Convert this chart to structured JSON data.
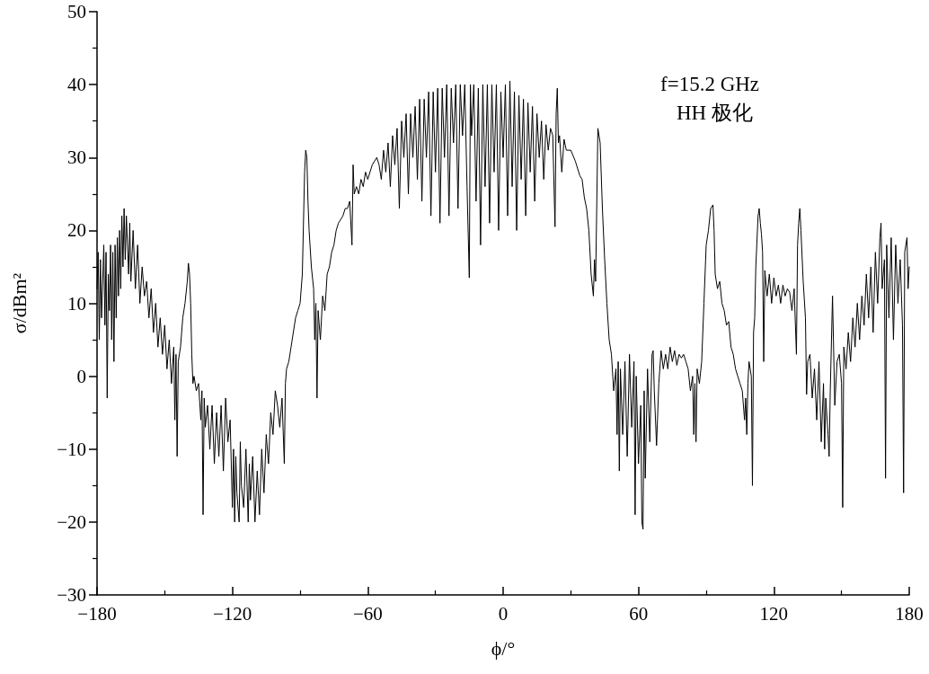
{
  "chart_data": {
    "type": "line",
    "xlabel": "ϕ/°",
    "ylabel": "σ/dBm²",
    "annotations": [
      "f=15.2 GHz",
      "HH 极化"
    ],
    "color": "#000000",
    "marker": "none",
    "line_style": "solid",
    "grid": false,
    "xlim": [
      -180,
      180
    ],
    "xticks": [
      -180,
      -120,
      -60,
      0,
      60,
      120,
      180
    ],
    "ylim": [
      -30,
      50
    ],
    "yticks": [
      -30,
      -20,
      -10,
      0,
      10,
      20,
      30,
      40,
      50
    ],
    "x": [
      -180,
      -179.5,
      -179,
      -178.5,
      -178,
      -177,
      -176.5,
      -176,
      -175.5,
      -175,
      -174.5,
      -174,
      -173.5,
      -173,
      -172.5,
      -172,
      -171.5,
      -171,
      -170.5,
      -170,
      -169.5,
      -169,
      -168.5,
      -168,
      -167.5,
      -167,
      -166,
      -165.5,
      -165,
      -164,
      -163,
      -162,
      -161,
      -160,
      -159,
      -158,
      -157,
      -156,
      -155,
      -154,
      -153,
      -152,
      -151,
      -150,
      -149,
      -148,
      -147,
      -146,
      -145.5,
      -145,
      -144.5,
      -144,
      -143,
      -142,
      -141,
      -140,
      -139.5,
      -139,
      -138.5,
      -138,
      -137.5,
      -137,
      -136,
      -135,
      -134,
      -133.5,
      -133,
      -132.5,
      -132,
      -131,
      -130,
      -129,
      -128,
      -127,
      -126,
      -125,
      -124,
      -123,
      -122,
      -121,
      -120,
      -119.5,
      -119,
      -118.5,
      -118,
      -117,
      -116.5,
      -116,
      -115,
      -114,
      -113,
      -112.5,
      -112,
      -111,
      -110,
      -109,
      -108,
      -107,
      -106,
      -105,
      -104,
      -103,
      -102,
      -101,
      -100,
      -99,
      -98,
      -97,
      -96.5,
      -96,
      -95,
      -94,
      -93,
      -92,
      -91,
      -90,
      -89,
      -88,
      -87.5,
      -87,
      -86.5,
      -86,
      -85,
      -84,
      -83.5,
      -83,
      -82.5,
      -82,
      -81,
      -80,
      -79,
      -78,
      -77,
      -76,
      -75,
      -74,
      -73,
      -72,
      -71,
      -70,
      -69,
      -68,
      -67,
      -66.5,
      -66,
      -65,
      -64,
      -63,
      -62,
      -61,
      -60,
      -58,
      -56,
      -55,
      -54,
      -53,
      -52,
      -51,
      -50,
      -49,
      -48,
      -47,
      -46,
      -45,
      -44,
      -43,
      -42,
      -41,
      -40,
      -39,
      -38,
      -37,
      -36,
      -35,
      -34,
      -33,
      -32,
      -31,
      -30,
      -29,
      -28,
      -27,
      -26,
      -25,
      -24,
      -23,
      -22,
      -21,
      -20,
      -19,
      -18,
      -17,
      -16,
      -15,
      -14.5,
      -14,
      -13,
      -12,
      -11,
      -10,
      -9,
      -8,
      -7,
      -6,
      -5,
      -4,
      -3,
      -2,
      -1,
      0,
      1,
      2,
      3,
      4,
      5,
      6,
      7,
      8,
      9,
      10,
      11,
      12,
      13,
      14,
      15,
      16,
      17,
      18,
      19,
      20,
      21,
      22,
      23,
      23.5,
      24,
      24.5,
      25,
      26,
      27,
      28,
      30,
      32,
      34,
      35,
      36,
      37,
      38,
      39,
      40,
      40.5,
      41,
      42,
      43,
      44,
      45,
      46,
      47,
      48,
      49,
      50,
      50.5,
      51,
      51.5,
      52,
      53,
      54,
      55,
      56,
      57,
      58,
      58.5,
      59,
      60,
      61,
      61.5,
      62,
      62.5,
      63,
      64,
      65,
      66,
      66.5,
      67,
      68,
      69,
      70,
      71,
      72,
      73,
      74,
      75,
      76,
      77,
      78,
      79,
      80,
      81,
      82,
      83,
      84,
      84.5,
      85,
      85.5,
      86,
      87,
      88,
      89,
      90,
      91,
      92,
      93,
      93.5,
      94,
      95,
      96,
      97,
      98,
      99,
      100,
      101,
      102,
      103,
      104,
      105,
      106,
      107,
      107.5,
      108,
      108.5,
      109,
      110,
      110.5,
      111,
      111.5,
      112,
      113,
      113.5,
      114,
      114.5,
      115,
      115.5,
      116,
      117,
      118,
      119,
      120,
      121,
      122,
      123,
      124,
      125,
      126,
      127,
      128,
      129,
      130,
      130.5,
      131,
      131.5,
      132,
      133,
      134,
      134.5,
      135,
      136,
      137,
      138,
      139,
      140,
      141,
      142,
      142.5,
      143,
      144,
      144.5,
      145,
      146,
      147,
      148,
      149,
      150,
      150.5,
      151,
      152,
      153,
      154,
      155,
      156,
      157,
      158,
      159,
      160,
      161,
      162,
      163,
      164,
      165,
      166,
      167,
      167.5,
      168,
      169,
      169.5,
      170,
      171,
      172,
      173,
      174,
      175,
      176,
      177,
      177.5,
      178,
      179,
      179.5,
      180
    ],
    "values": [
      12,
      17,
      5,
      16,
      8,
      18,
      7,
      17,
      -3,
      14,
      9,
      18,
      5,
      17,
      2,
      18,
      8,
      19,
      11,
      20,
      12,
      22,
      15,
      23,
      16,
      22,
      14,
      21,
      13,
      20,
      12,
      18,
      10,
      15,
      11,
      13,
      8,
      12,
      6,
      10,
      4,
      8,
      3,
      7,
      1,
      5,
      -1,
      4,
      -6,
      3,
      -11,
      2,
      4,
      8,
      10,
      13,
      15.5,
      14,
      10,
      3,
      -1,
      0,
      -2,
      -1,
      -6,
      -2,
      -19,
      -3,
      -7,
      -4,
      -10,
      -4,
      -12,
      -5,
      -11,
      -4,
      -13,
      -3,
      -9,
      -6,
      -18,
      -10,
      -20,
      -11,
      -16,
      -20,
      -9,
      -15,
      -18,
      -10,
      -20,
      -12,
      -17,
      -11,
      -20,
      -13,
      -19,
      -10,
      -16,
      -8,
      -12,
      -5,
      -8,
      -2,
      -4,
      -7,
      -3,
      -12,
      -1,
      1,
      2,
      4,
      6,
      8,
      9,
      10,
      14,
      28,
      31,
      30,
      24,
      20,
      15,
      12,
      5,
      10,
      -3,
      9,
      5,
      11,
      9,
      14,
      15,
      17,
      18,
      20,
      21,
      21.5,
      22,
      23,
      23,
      24,
      18,
      29,
      25,
      26,
      25,
      27,
      26,
      28,
      27,
      29,
      30,
      29,
      27,
      31,
      28,
      32,
      26,
      33,
      29,
      34,
      23,
      35,
      30,
      36,
      25,
      36,
      30,
      37,
      27,
      38,
      24,
      38,
      30,
      39,
      22,
      39,
      28,
      39.5,
      21,
      39.5,
      30,
      40,
      22,
      39.5,
      32,
      40,
      23,
      40,
      33,
      40,
      26,
      13.5,
      40,
      33,
      40,
      24,
      39.5,
      18,
      40,
      26,
      40,
      21,
      40,
      28,
      40,
      20,
      39,
      30,
      40,
      22,
      40.5,
      26,
      39,
      20,
      38.5,
      27,
      38,
      22,
      37.5,
      28,
      37,
      24,
      36,
      30,
      35,
      27,
      34.5,
      31,
      34,
      33,
      20.5,
      36,
      39.5,
      32,
      33,
      28,
      32.5,
      31,
      31,
      29.5,
      27.5,
      27,
      24.5,
      23,
      20,
      14,
      11,
      16,
      13,
      34,
      32,
      23,
      16,
      10,
      5,
      3,
      -2,
      1,
      -8,
      2,
      -13,
      1,
      -8,
      2,
      -11,
      3,
      -7,
      2,
      -19,
      0,
      -12,
      -4,
      -20,
      -21,
      -2,
      -14,
      1,
      -9,
      3,
      3.5,
      -2,
      -9.5,
      -1,
      3.5,
      1,
      3,
      1,
      4,
      2,
      3.5,
      1.5,
      3,
      2.5,
      3,
      2,
      1,
      -2,
      0,
      -8,
      -1,
      -9,
      1,
      -1,
      2,
      10,
      18,
      20,
      23,
      23.5,
      20,
      14,
      12,
      13,
      10,
      9,
      7,
      7.5,
      4,
      3,
      1,
      0,
      -1,
      -2,
      -6,
      -3,
      -8,
      -1,
      2,
      0,
      -15,
      6,
      8,
      15,
      22,
      23,
      21,
      19.5,
      17,
      2,
      14.5,
      11,
      14,
      10,
      13.5,
      11,
      12.5,
      10,
      12.5,
      11,
      12,
      11.5,
      9,
      12,
      3,
      18,
      21,
      23,
      20,
      13,
      8,
      -2.5,
      2,
      3,
      -3,
      1,
      -6,
      2,
      -9,
      -1,
      -10,
      -3,
      -8,
      -11,
      -2,
      11,
      -4,
      2,
      3,
      -1,
      -18,
      4,
      1,
      6,
      2,
      8,
      4,
      10,
      5,
      11,
      7,
      14,
      8,
      15,
      6,
      17,
      10,
      19,
      21,
      12,
      16,
      -14,
      18,
      8,
      19,
      5,
      18,
      10,
      16,
      7,
      -16,
      17,
      19,
      12,
      15
    ]
  }
}
